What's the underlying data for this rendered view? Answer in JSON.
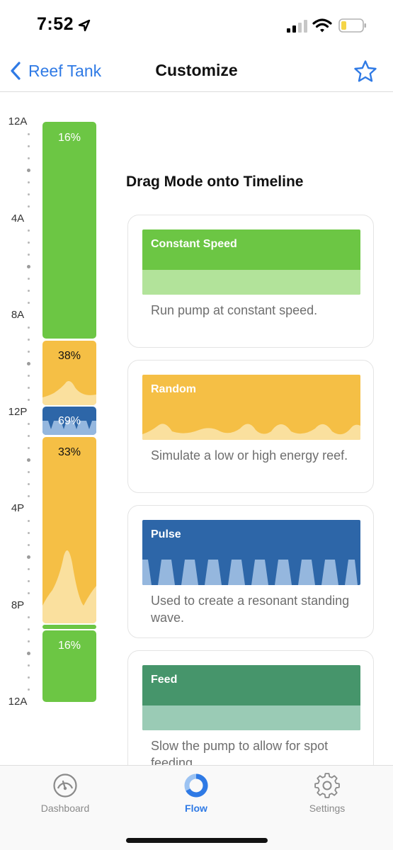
{
  "status_bar": {
    "time": "7:52",
    "battery_color": "#f5d547"
  },
  "nav": {
    "back_label": "Reef Tank",
    "title": "Customize",
    "accent": "#2f7ae5"
  },
  "timeline": {
    "hour_labels": [
      "12A",
      "4A",
      "8A",
      "12P",
      "4P",
      "8P",
      "12A"
    ],
    "segments": [
      {
        "mode": "Constant Speed",
        "percent_label": "16%",
        "color": "#6cc644"
      },
      {
        "mode": "Random",
        "percent_label": "38%",
        "color": "#f5bf45"
      },
      {
        "mode": "Pulse",
        "percent_label": "69%",
        "color": "#2d66a8"
      },
      {
        "mode": "Random",
        "percent_label": "33%",
        "color": "#f5bf45"
      },
      {
        "mode": "Constant Speed",
        "percent_label": "",
        "color": "#6cc644"
      },
      {
        "mode": "Constant Speed",
        "percent_label": "16%",
        "color": "#6cc644"
      }
    ]
  },
  "panel": {
    "title": "Drag Mode onto Timeline",
    "modes": [
      {
        "name": "Constant Speed",
        "description": "Run pump at constant speed.",
        "color": "#6cc644",
        "light_color": "#b2e39a"
      },
      {
        "name": "Random",
        "description": "Simulate a low or high energy reef.",
        "color": "#f5bf45",
        "light_color": "#fae09e"
      },
      {
        "name": "Pulse",
        "description": "Used to create a resonant standing wave.",
        "color": "#2d66a8",
        "light_color": "#95b7de"
      },
      {
        "name": "Feed",
        "description": "Slow the pump to allow for spot feeding.",
        "color": "#46956b",
        "light_color": "#9acbb5"
      }
    ]
  },
  "tabs": [
    {
      "label": "Dashboard",
      "icon": "gauge-icon",
      "active": false
    },
    {
      "label": "Flow",
      "icon": "ring-chart-icon",
      "active": true
    },
    {
      "label": "Settings",
      "icon": "gear-icon",
      "active": false
    }
  ]
}
